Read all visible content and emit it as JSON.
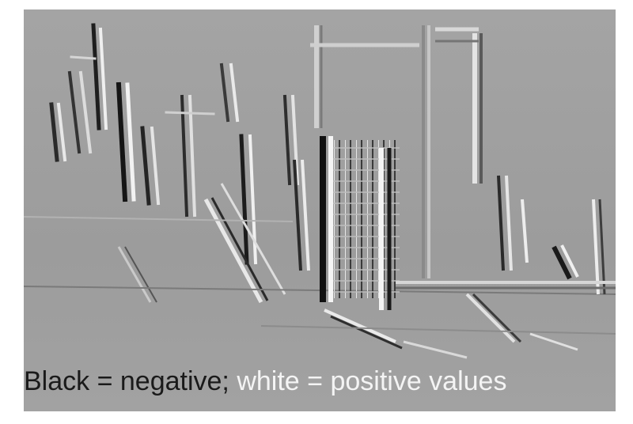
{
  "image": {
    "subject": "grayscale edge-filter response of a city skyline",
    "background_gray": "#9a9a9a"
  },
  "caption": {
    "negative_text": "Black = negative;",
    "positive_text": " white = positive values",
    "negative_color": "#1a1a1a",
    "positive_color": "#f4f4f4"
  }
}
